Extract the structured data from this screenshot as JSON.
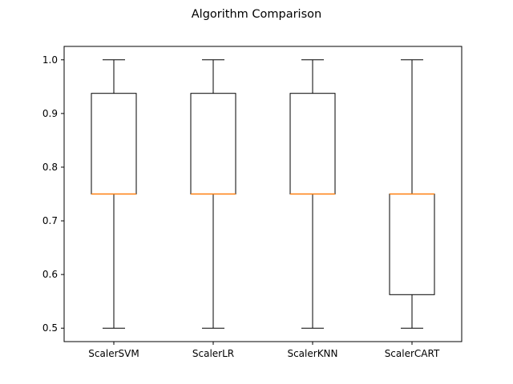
{
  "chart_data": {
    "type": "box",
    "title": "Algorithm Comparison",
    "xlabel": "",
    "ylabel": "",
    "categories": [
      "ScalerSVM",
      "ScalerLR",
      "ScalerKNN",
      "ScalerCART"
    ],
    "boxes": [
      {
        "category": "ScalerSVM",
        "whisker_low": 0.5,
        "q1": 0.75,
        "median": 0.75,
        "q3": 0.9375,
        "whisker_high": 1.0
      },
      {
        "category": "ScalerLR",
        "whisker_low": 0.5,
        "q1": 0.75,
        "median": 0.75,
        "q3": 0.9375,
        "whisker_high": 1.0
      },
      {
        "category": "ScalerKNN",
        "whisker_low": 0.5,
        "q1": 0.75,
        "median": 0.75,
        "q3": 0.9375,
        "whisker_high": 1.0
      },
      {
        "category": "ScalerCART",
        "whisker_low": 0.5,
        "q1": 0.5625,
        "median": 0.75,
        "q3": 0.75,
        "whisker_high": 1.0
      }
    ],
    "ylim": [
      0.475,
      1.025
    ],
    "yticks": [
      0.5,
      0.6,
      0.7,
      0.8,
      0.9,
      1.0
    ],
    "ytick_labels": [
      "0.5",
      "0.6",
      "0.7",
      "0.8",
      "0.9",
      "1.0"
    ],
    "grid": false,
    "legend": "none",
    "colors": {
      "box": "#000000",
      "median": "#ff7f0e",
      "axes": "#000000"
    }
  }
}
